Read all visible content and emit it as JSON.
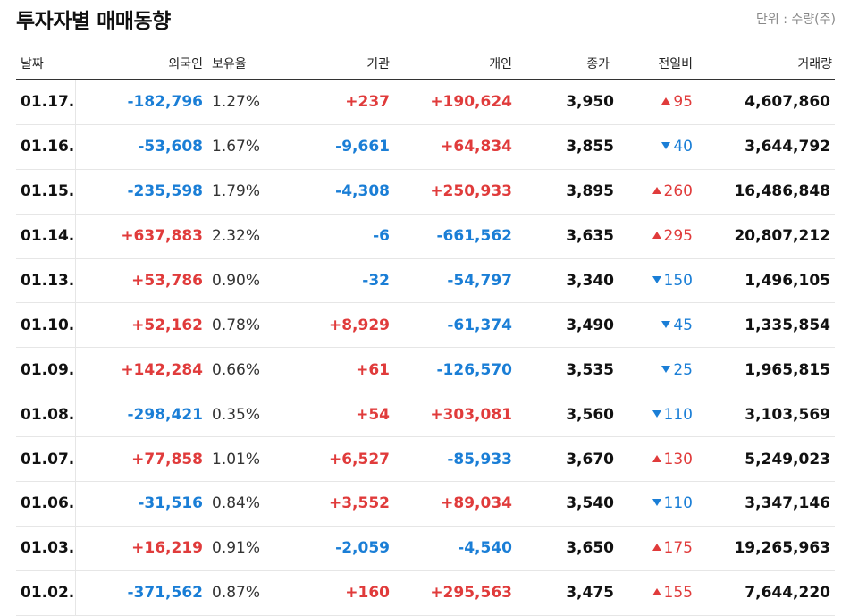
{
  "title": "투자자별 매매동향",
  "unit": "단위 : 수량(주)",
  "colors": {
    "up": "#e03b3b",
    "down": "#1a7ed6"
  },
  "headers": {
    "date": "날짜",
    "foreign": "외국인",
    "holding": "보유율",
    "institution": "기관",
    "individual": "개인",
    "close": "종가",
    "change": "전일비",
    "volume": "거래량"
  },
  "rows": [
    {
      "date": "01.17.",
      "foreign": "-182,796",
      "holding": "1.27%",
      "institution": "+237",
      "individual": "+190,624",
      "close": "3,950",
      "change": "95",
      "change_dir": "up",
      "volume": "4,607,860"
    },
    {
      "date": "01.16.",
      "foreign": "-53,608",
      "holding": "1.67%",
      "institution": "-9,661",
      "individual": "+64,834",
      "close": "3,855",
      "change": "40",
      "change_dir": "down",
      "volume": "3,644,792"
    },
    {
      "date": "01.15.",
      "foreign": "-235,598",
      "holding": "1.79%",
      "institution": "-4,308",
      "individual": "+250,933",
      "close": "3,895",
      "change": "260",
      "change_dir": "up",
      "volume": "16,486,848"
    },
    {
      "date": "01.14.",
      "foreign": "+637,883",
      "holding": "2.32%",
      "institution": "-6",
      "individual": "-661,562",
      "close": "3,635",
      "change": "295",
      "change_dir": "up",
      "volume": "20,807,212"
    },
    {
      "date": "01.13.",
      "foreign": "+53,786",
      "holding": "0.90%",
      "institution": "-32",
      "individual": "-54,797",
      "close": "3,340",
      "change": "150",
      "change_dir": "down",
      "volume": "1,496,105"
    },
    {
      "date": "01.10.",
      "foreign": "+52,162",
      "holding": "0.78%",
      "institution": "+8,929",
      "individual": "-61,374",
      "close": "3,490",
      "change": "45",
      "change_dir": "down",
      "volume": "1,335,854"
    },
    {
      "date": "01.09.",
      "foreign": "+142,284",
      "holding": "0.66%",
      "institution": "+61",
      "individual": "-126,570",
      "close": "3,535",
      "change": "25",
      "change_dir": "down",
      "volume": "1,965,815"
    },
    {
      "date": "01.08.",
      "foreign": "-298,421",
      "holding": "0.35%",
      "institution": "+54",
      "individual": "+303,081",
      "close": "3,560",
      "change": "110",
      "change_dir": "down",
      "volume": "3,103,569"
    },
    {
      "date": "01.07.",
      "foreign": "+77,858",
      "holding": "1.01%",
      "institution": "+6,527",
      "individual": "-85,933",
      "close": "3,670",
      "change": "130",
      "change_dir": "up",
      "volume": "5,249,023"
    },
    {
      "date": "01.06.",
      "foreign": "-31,516",
      "holding": "0.84%",
      "institution": "+3,552",
      "individual": "+89,034",
      "close": "3,540",
      "change": "110",
      "change_dir": "down",
      "volume": "3,347,146"
    },
    {
      "date": "01.03.",
      "foreign": "+16,219",
      "holding": "0.91%",
      "institution": "-2,059",
      "individual": "-4,540",
      "close": "3,650",
      "change": "175",
      "change_dir": "up",
      "volume": "19,265,963"
    },
    {
      "date": "01.02.",
      "foreign": "-371,562",
      "holding": "0.87%",
      "institution": "+160",
      "individual": "+295,563",
      "close": "3,475",
      "change": "155",
      "change_dir": "up",
      "volume": "7,644,220"
    }
  ]
}
